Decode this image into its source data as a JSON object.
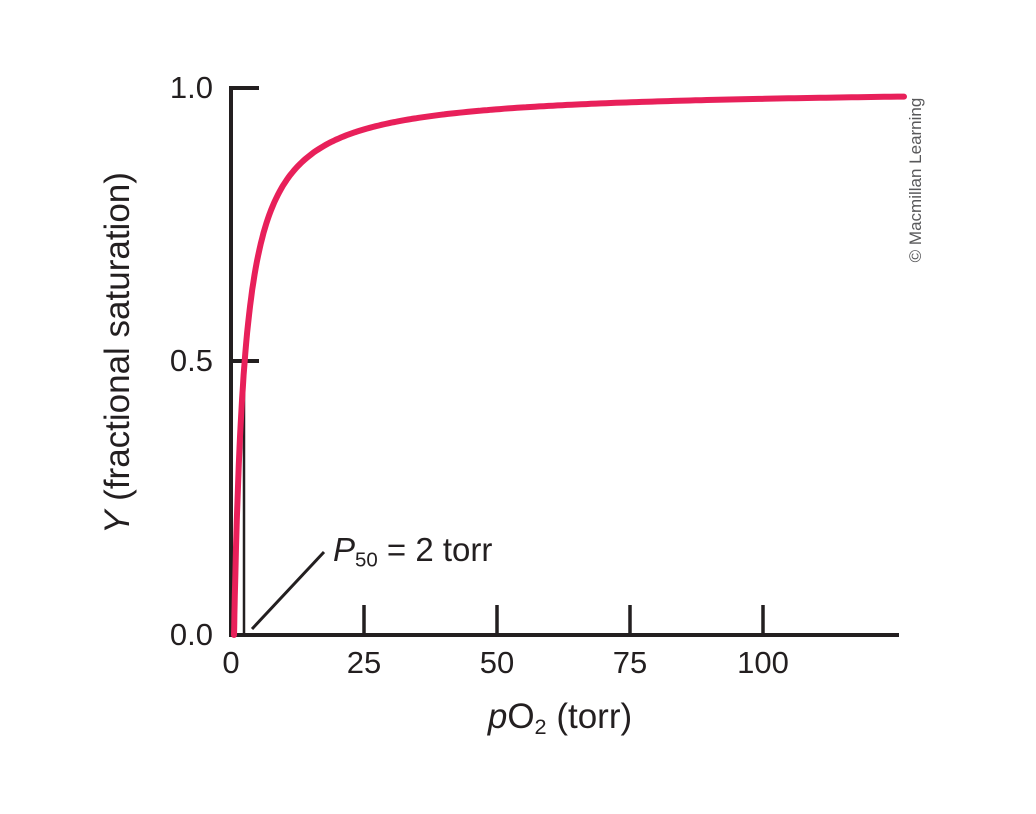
{
  "figure": {
    "credit": "© Macmillan Learning"
  },
  "colors": {
    "axis_and_text": "#231f20",
    "curve": "#e8205a",
    "credit_gray": "#58585a",
    "background": "#ffffff"
  },
  "chart_data": {
    "type": "line",
    "title": "",
    "xlabel": {
      "symbol": "p",
      "element": "O",
      "subscript": "2",
      "rest": " (torr)"
    },
    "ylabel": {
      "symbol": "Y",
      "rest": " (fractional saturation)"
    },
    "x_tick_labels": [
      "0",
      "25",
      "50",
      "75",
      "100"
    ],
    "x_ticks": [
      0,
      25,
      50,
      75,
      100
    ],
    "y_tick_labels": [
      "0.0",
      "0.5",
      "1.0"
    ],
    "y_ticks": [
      0.0,
      0.5,
      1.0
    ],
    "xlim": [
      0,
      126
    ],
    "ylim": [
      0,
      1.0
    ],
    "grid": false,
    "legend": "none",
    "curve": {
      "model": "hyperbolic",
      "equation": "Y = pO2 / (P50 + pO2)",
      "p50_torr": 2,
      "points_pO2_torr": [
        0,
        1,
        2,
        5,
        10,
        25,
        50,
        75,
        100,
        125
      ],
      "points_Y": [
        0,
        0.33,
        0.5,
        0.71,
        0.83,
        0.93,
        0.96,
        0.97,
        0.98,
        0.98
      ]
    },
    "annotation": {
      "symbol": "P",
      "subscript": "50",
      "rest": " = 2 torr",
      "points_to_torr": 2
    },
    "reference_line": {
      "x_torr": 2,
      "y_from": 0.0,
      "y_to": 0.5
    }
  }
}
